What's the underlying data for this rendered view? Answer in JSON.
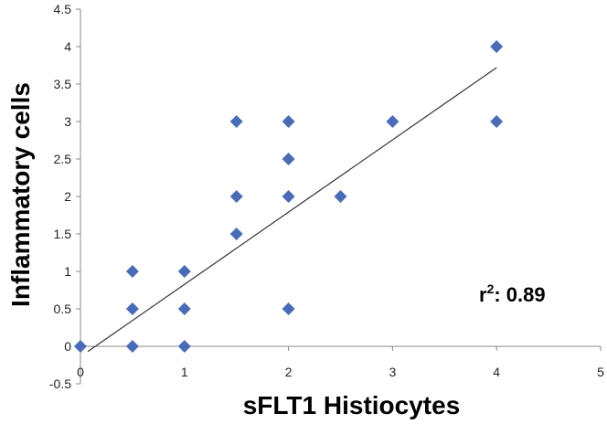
{
  "chart_data": {
    "type": "scatter",
    "title": "",
    "xlabel": "sFLT1 Histiocytes",
    "ylabel": "Inflammatory cells",
    "xlim": [
      0,
      5
    ],
    "ylim": [
      -0.5,
      4.5
    ],
    "x_ticks": [
      "0",
      "1",
      "2",
      "3",
      "4",
      "5"
    ],
    "y_ticks": [
      "-0.5",
      "0",
      "0.5",
      "1",
      "1.5",
      "2",
      "2.5",
      "3",
      "3.5",
      "4",
      "4.5"
    ],
    "grid": false,
    "legend": "none",
    "series": [
      {
        "points": [
          {
            "x": 0,
            "y": 0
          },
          {
            "x": 0.5,
            "y": 0
          },
          {
            "x": 0.5,
            "y": 0.5
          },
          {
            "x": 0.5,
            "y": 1
          },
          {
            "x": 1,
            "y": 0
          },
          {
            "x": 1,
            "y": 0.5
          },
          {
            "x": 1,
            "y": 1
          },
          {
            "x": 1.5,
            "y": 1.5
          },
          {
            "x": 1.5,
            "y": 2
          },
          {
            "x": 1.5,
            "y": 3
          },
          {
            "x": 2,
            "y": 0.5
          },
          {
            "x": 2,
            "y": 2
          },
          {
            "x": 2,
            "y": 2.5
          },
          {
            "x": 2,
            "y": 3
          },
          {
            "x": 2.5,
            "y": 2
          },
          {
            "x": 3,
            "y": 3
          },
          {
            "x": 4,
            "y": 3
          },
          {
            "x": 4,
            "y": 4
          }
        ],
        "marker": "diamond",
        "color": "#4A6BB5"
      }
    ],
    "trendline": {
      "type": "linear",
      "from": {
        "x": 0.07,
        "y": -0.07
      },
      "to": {
        "x": 4,
        "y": 3.72
      },
      "color": "#333333"
    },
    "annotation": {
      "base": "r",
      "superscript": "2",
      "text": ": 0.89"
    }
  }
}
